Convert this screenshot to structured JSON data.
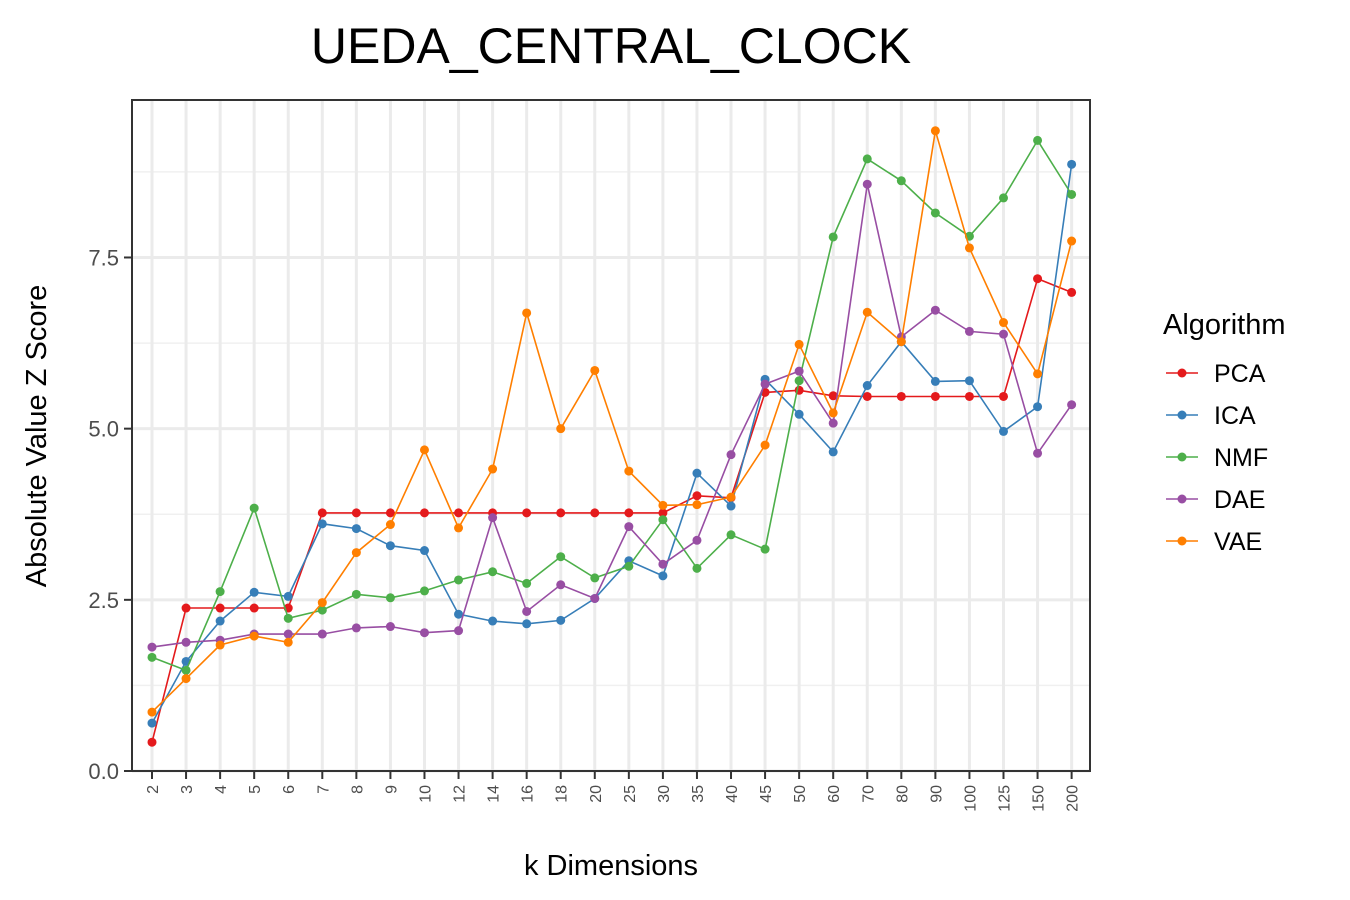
{
  "chart_data": {
    "type": "line",
    "title": "UEDA_CENTRAL_CLOCK",
    "xlabel": "k Dimensions",
    "ylabel": "Absolute Value Z Score",
    "categories": [
      "2",
      "3",
      "4",
      "5",
      "6",
      "7",
      "8",
      "9",
      "10",
      "12",
      "14",
      "16",
      "18",
      "20",
      "25",
      "30",
      "35",
      "40",
      "45",
      "50",
      "60",
      "70",
      "80",
      "90",
      "100",
      "125",
      "150",
      "200"
    ],
    "ylim": [
      0,
      9.8
    ],
    "yticks": [
      0.0,
      2.5,
      5.0,
      7.5
    ],
    "ytick_labels": [
      "0.0",
      "2.5",
      "5.0",
      "7.5"
    ],
    "grid": true,
    "legend_title": "Algorithm",
    "legend_position": "right",
    "series": [
      {
        "name": "PCA",
        "color": "#e41a1c",
        "values": [
          0.42,
          2.38,
          2.38,
          2.38,
          2.38,
          3.77,
          3.77,
          3.77,
          3.77,
          3.77,
          3.77,
          3.77,
          3.77,
          3.77,
          3.77,
          3.77,
          4.02,
          3.99,
          5.53,
          5.56,
          5.48,
          5.47,
          5.47,
          5.47,
          5.47,
          5.47,
          7.19,
          6.99
        ]
      },
      {
        "name": "ICA",
        "color": "#377eb8",
        "values": [
          0.7,
          1.6,
          2.19,
          2.61,
          2.55,
          3.61,
          3.54,
          3.29,
          3.22,
          2.29,
          2.19,
          2.15,
          2.2,
          2.52,
          3.07,
          2.85,
          4.35,
          3.87,
          5.72,
          5.21,
          4.66,
          5.63,
          6.27,
          5.69,
          5.7,
          4.96,
          5.32,
          8.86
        ]
      },
      {
        "name": "NMF",
        "color": "#4daf4a",
        "values": [
          1.66,
          1.47,
          2.62,
          3.84,
          2.23,
          2.35,
          2.58,
          2.53,
          2.63,
          2.79,
          2.91,
          2.74,
          3.13,
          2.82,
          2.99,
          3.67,
          2.96,
          3.45,
          3.24,
          5.7,
          7.8,
          8.94,
          8.62,
          8.15,
          7.81,
          8.37,
          9.21,
          8.42
        ]
      },
      {
        "name": "DAE",
        "color": "#984ea3",
        "values": [
          1.81,
          1.88,
          1.91,
          2.0,
          2.0,
          2.0,
          2.09,
          2.11,
          2.02,
          2.05,
          3.7,
          2.33,
          2.72,
          2.52,
          3.57,
          3.02,
          3.37,
          4.62,
          5.65,
          5.84,
          5.08,
          8.57,
          6.34,
          6.73,
          6.42,
          6.38,
          4.64,
          5.35
        ]
      },
      {
        "name": "VAE",
        "color": "#ff7f00",
        "values": [
          0.86,
          1.35,
          1.84,
          1.97,
          1.88,
          2.46,
          3.19,
          3.6,
          4.69,
          3.55,
          4.41,
          6.69,
          5.0,
          5.85,
          4.38,
          3.88,
          3.89,
          4.0,
          4.76,
          6.23,
          5.23,
          6.7,
          6.27,
          9.35,
          7.64,
          6.55,
          5.8,
          7.74
        ]
      }
    ]
  }
}
